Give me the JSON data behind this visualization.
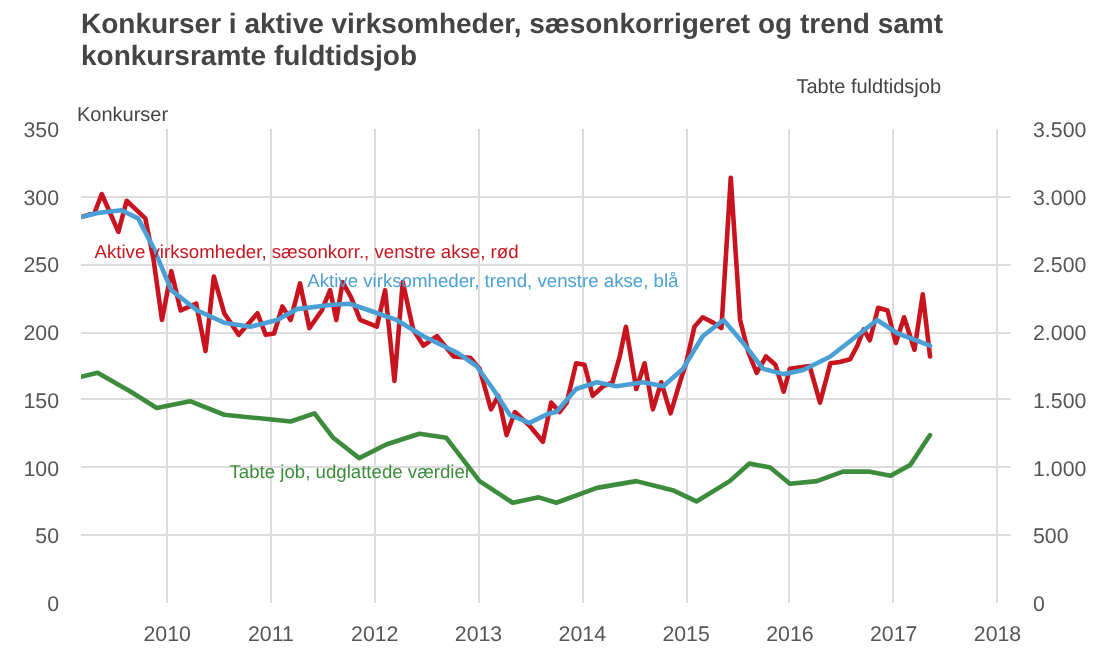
{
  "chart_data": {
    "type": "line",
    "title": "Konkurser i aktive virksomheder, sæsonkorrigeret og trend samt konkursramte fuldtidsjob",
    "ylabel": "Konkurser",
    "y2label": "Tabte fuldtidsjob",
    "xlim": [
      2009.17,
      2018.13
    ],
    "xticks": [
      {
        "value": 2010,
        "label": "2010"
      },
      {
        "value": 2011,
        "label": "2011"
      },
      {
        "value": 2012,
        "label": "2012"
      },
      {
        "value": 2013,
        "label": "2013"
      },
      {
        "value": 2014,
        "label": "2014"
      },
      {
        "value": 2015,
        "label": "2015"
      },
      {
        "value": 2016,
        "label": "2016"
      },
      {
        "value": 2017,
        "label": "2017"
      },
      {
        "value": 2018,
        "label": "2018"
      }
    ],
    "ylim": [
      0,
      350
    ],
    "yticks": [
      0,
      50,
      100,
      150,
      200,
      250,
      300,
      350
    ],
    "y2lim": [
      0,
      3500
    ],
    "y2ticks": [
      {
        "value": 0,
        "label": "0"
      },
      {
        "value": 500,
        "label": "500"
      },
      {
        "value": 1000,
        "label": "1.000"
      },
      {
        "value": 1500,
        "label": "1.500"
      },
      {
        "value": 2000,
        "label": "2.000"
      },
      {
        "value": 2500,
        "label": "2.500"
      },
      {
        "value": 3000,
        "label": "3.000"
      },
      {
        "value": 3500,
        "label": "3.500"
      }
    ],
    "grid": true,
    "line_style": "solid",
    "series": [
      {
        "name": "Aktive virksomheder, sæsonkorr., venstre akse, rød",
        "color": "#c8141e",
        "x": [
          2009.17,
          2009.3,
          2009.37,
          2009.53,
          2009.61,
          2009.79,
          2009.87,
          2009.95,
          2010.04,
          2010.13,
          2010.28,
          2010.37,
          2010.45,
          2010.55,
          2010.69,
          2010.87,
          2010.95,
          2011.03,
          2011.11,
          2011.19,
          2011.28,
          2011.37,
          2011.49,
          2011.57,
          2011.63,
          2011.69,
          2011.77,
          2011.86,
          2012.02,
          2012.1,
          2012.19,
          2012.27,
          2012.37,
          2012.47,
          2012.6,
          2012.76,
          2012.92,
          2013.01,
          2013.12,
          2013.19,
          2013.27,
          2013.35,
          2013.49,
          2013.62,
          2013.7,
          2013.78,
          2013.85,
          2013.94,
          2014.02,
          2014.1,
          2014.2,
          2014.29,
          2014.36,
          2014.42,
          2014.52,
          2014.6,
          2014.68,
          2014.76,
          2014.85,
          2014.94,
          2015.0,
          2015.08,
          2015.16,
          2015.26,
          2015.34,
          2015.43,
          2015.52,
          2015.6,
          2015.68,
          2015.77,
          2015.86,
          2015.94,
          2016.0,
          2016.1,
          2016.19,
          2016.29,
          2016.39,
          2016.48,
          2016.58,
          2016.65,
          2016.71,
          2016.77,
          2016.85,
          2016.94,
          2017.02,
          2017.1,
          2017.2,
          2017.28,
          2017.35
        ],
        "values": [
          285,
          288,
          302,
          274,
          297,
          284,
          253,
          209,
          245,
          216,
          221,
          186,
          241,
          214,
          198,
          214,
          198,
          199,
          219,
          209,
          236,
          203,
          216,
          231,
          209,
          237,
          226,
          209,
          204,
          231,
          164,
          237,
          202,
          190,
          197,
          182,
          181,
          173,
          143,
          153,
          124,
          141,
          131,
          119,
          148,
          141,
          148,
          177,
          176,
          153,
          160,
          163,
          182,
          204,
          158,
          177,
          143,
          163,
          140,
          163,
          177,
          204,
          211,
          207,
          203,
          314,
          209,
          185,
          170,
          182,
          176,
          156,
          173,
          174,
          175,
          148,
          177,
          178,
          180,
          190,
          202,
          194,
          218,
          216,
          192,
          211,
          187,
          228,
          182
        ]
      },
      {
        "name": "Aktive virksomheder, trend, venstre akse, blå",
        "color": "#4a9fd4",
        "x": [
          2009.17,
          2009.33,
          2009.56,
          2009.72,
          2009.87,
          2010.04,
          2010.29,
          2010.55,
          2010.8,
          2011.06,
          2011.25,
          2011.57,
          2011.76,
          2011.95,
          2012.21,
          2012.47,
          2012.79,
          2012.98,
          2013.14,
          2013.3,
          2013.49,
          2013.68,
          2013.75,
          2013.94,
          2014.14,
          2014.33,
          2014.59,
          2014.78,
          2014.97,
          2015.16,
          2015.36,
          2015.55,
          2015.74,
          2015.94,
          2016.13,
          2016.39,
          2016.64,
          2016.84,
          2017.04,
          2017.35
        ],
        "values": [
          285,
          288,
          290,
          284,
          262,
          231,
          216,
          207,
          204,
          209,
          217,
          220,
          221,
          216,
          209,
          197,
          185,
          175,
          158,
          139,
          133,
          140,
          141,
          158,
          163,
          160,
          163,
          160,
          173,
          197,
          209,
          192,
          173,
          169,
          172,
          182,
          197,
          209,
          199,
          190
        ]
      },
      {
        "name": "Tabte job, udglattede værdier",
        "color": "#3d8b3d",
        "axis": "y2",
        "x": [
          2009.17,
          2009.33,
          2009.65,
          2009.9,
          2010.22,
          2010.55,
          2010.94,
          2011.19,
          2011.42,
          2011.6,
          2011.85,
          2012.11,
          2012.43,
          2012.69,
          2013.01,
          2013.33,
          2013.58,
          2013.75,
          2014.14,
          2014.52,
          2014.88,
          2015.1,
          2015.42,
          2015.61,
          2015.81,
          2016.0,
          2016.26,
          2016.51,
          2016.77,
          2016.97,
          2017.16,
          2017.35
        ],
        "values": [
          1670,
          1700,
          1560,
          1440,
          1490,
          1390,
          1360,
          1340,
          1400,
          1220,
          1070,
          1170,
          1250,
          1220,
          900,
          740,
          780,
          740,
          850,
          900,
          830,
          750,
          900,
          1030,
          1000,
          880,
          900,
          970,
          970,
          940,
          1020,
          1240
        ]
      }
    ]
  }
}
